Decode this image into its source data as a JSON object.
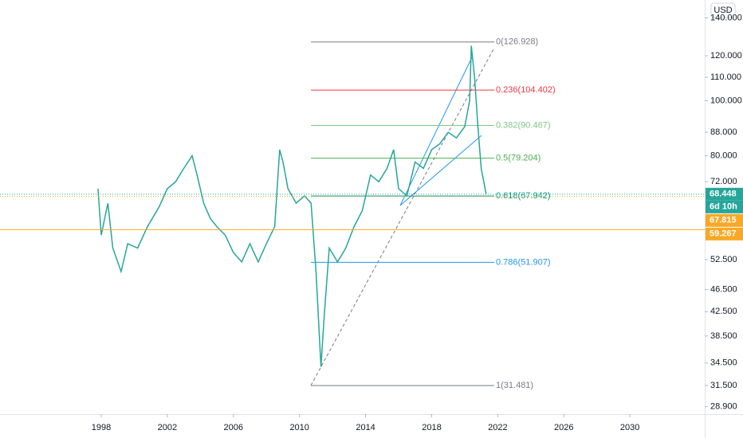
{
  "chart_data": {
    "type": "line",
    "currency": "USD",
    "log_scale": true,
    "xlim": [
      1991.87,
      2034.53
    ],
    "xticks": [
      1998,
      2002,
      2006,
      2010,
      2014,
      2018,
      2022,
      2026,
      2030
    ],
    "ylim": [
      28.04,
      150.5
    ],
    "yticks": [
      {
        "value": 28.9,
        "label": "28.900"
      },
      {
        "value": 31.5,
        "label": "31.500"
      },
      {
        "value": 34.5,
        "label": "34.500"
      },
      {
        "value": 38.5,
        "label": "38.500"
      },
      {
        "value": 42.5,
        "label": "42.500"
      },
      {
        "value": 46.5,
        "label": "46.500"
      },
      {
        "value": 52.5,
        "label": "52.500"
      },
      {
        "value": 72,
        "label": "72.000"
      },
      {
        "value": 80,
        "label": "80.000"
      },
      {
        "value": 88,
        "label": "88.000"
      },
      {
        "value": 100,
        "label": "100.000"
      },
      {
        "value": 110,
        "label": "110.000"
      },
      {
        "value": 120,
        "label": "120.000"
      },
      {
        "value": 140,
        "label": "140.000"
      }
    ],
    "series": [
      {
        "color": "#26a69a",
        "x": [
          1997.8,
          1998.0,
          1998.4,
          1998.7,
          1999.2,
          1999.6,
          2000.2,
          2000.8,
          2001.5,
          2002.0,
          2002.5,
          2003.0,
          2003.5,
          2003.8,
          2004.2,
          2004.6,
          2005.0,
          2005.5,
          2006.0,
          2006.5,
          2007.0,
          2007.5,
          2008.0,
          2008.5,
          2008.8,
          2009.0,
          2009.3,
          2009.8,
          2010.3,
          2010.7,
          2011.0,
          2011.3,
          2011.5,
          2011.8,
          2012.3,
          2012.8,
          2013.3,
          2013.8,
          2014.3,
          2014.8,
          2015.3,
          2015.7,
          2016.0,
          2016.5,
          2017.0,
          2017.5,
          2018.0,
          2018.5,
          2019.0,
          2019.5,
          2020.0,
          2020.3,
          2020.4,
          2020.6,
          2020.8,
          2021.0,
          2021.3
        ],
        "values": [
          70,
          58,
          66,
          55,
          50,
          56,
          55,
          60,
          65,
          70,
          72,
          76,
          80,
          74,
          66,
          62,
          60,
          58,
          54,
          52,
          56,
          52,
          56,
          60,
          82,
          78,
          70,
          66,
          68,
          66,
          50,
          34,
          42,
          55,
          52,
          55,
          60,
          64,
          74,
          72,
          76,
          82,
          70,
          68,
          78,
          76,
          82,
          84,
          88,
          86,
          90,
          100,
          125,
          110,
          90,
          76,
          68.448
        ]
      }
    ],
    "fib_levels": [
      {
        "value": 126.928,
        "label": "0(126.928)",
        "color": "#787b86"
      },
      {
        "value": 104.402,
        "label": "0.236(104.402)",
        "color": "#f23645"
      },
      {
        "value": 90.467,
        "label": "0.382(90.467)",
        "color": "#81c784"
      },
      {
        "value": 79.204,
        "label": "0.5(79.204)",
        "color": "#4caf50"
      },
      {
        "value": 67.942,
        "label": "0.618(67.942)",
        "color": "#089981"
      },
      {
        "value": 51.907,
        "label": "0.786(51.907)",
        "color": "#2196f3"
      },
      {
        "value": 31.481,
        "label": "1(31.481)",
        "color": "#787b86"
      }
    ],
    "price_lines": [
      {
        "value": 68.448,
        "color": "#26a69a",
        "style": "dotted",
        "countdown": "6d 10h"
      },
      {
        "value": 67.815,
        "color": "#f9a825",
        "style": "dotted"
      },
      {
        "value": 59.267,
        "color": "#f9a825",
        "style": "solid"
      }
    ]
  }
}
